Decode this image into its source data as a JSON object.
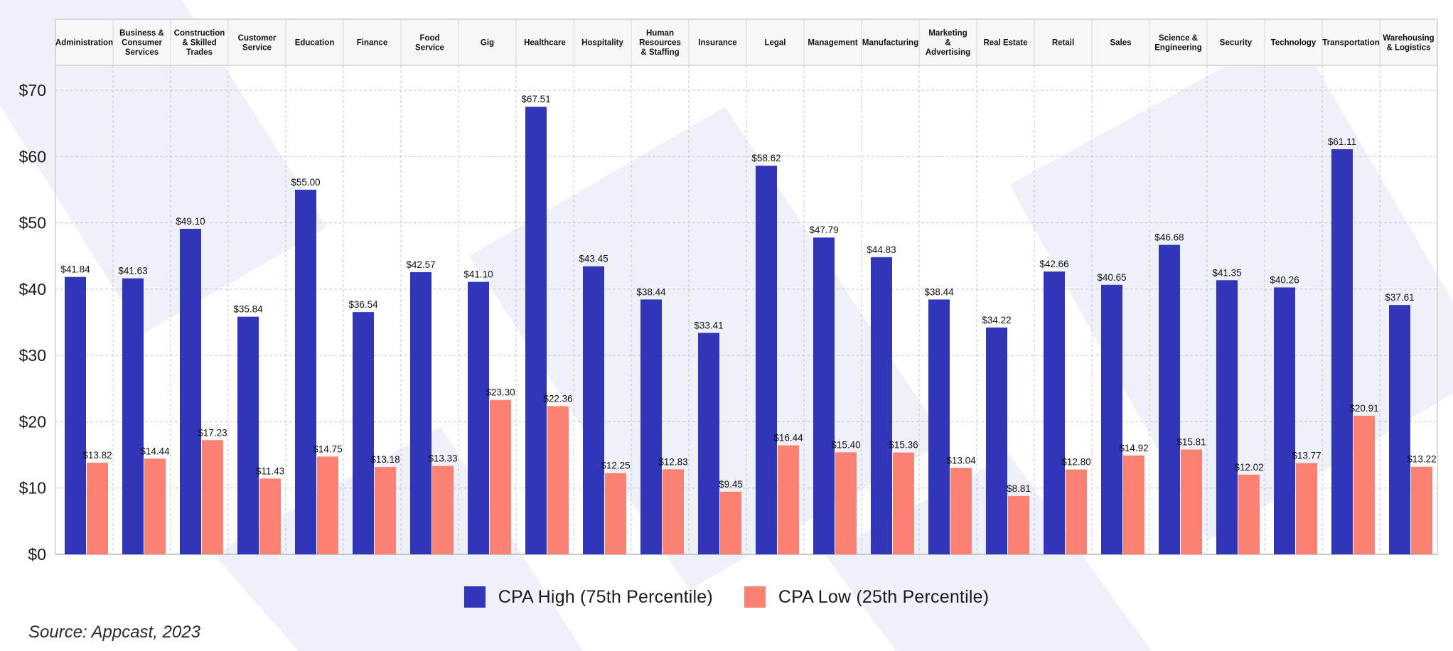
{
  "chart_data": {
    "type": "bar",
    "categories": [
      "Administration",
      "Business &\nConsumer\nServices",
      "Construction\n& Skilled\nTrades",
      "Customer\nService",
      "Education",
      "Finance",
      "Food\nService",
      "Gig",
      "Healthcare",
      "Hospitality",
      "Human\nResources\n& Staffing",
      "Insurance",
      "Legal",
      "Management",
      "Manufacturing",
      "Marketing\n&\nAdvertising",
      "Real Estate",
      "Retail",
      "Sales",
      "Science &\nEngineering",
      "Security",
      "Technology",
      "Transportation",
      "Warehousing\n& Logistics"
    ],
    "series": [
      {
        "name": "CPA High (75th Percentile)",
        "color": "#3136b8",
        "values": [
          41.84,
          41.63,
          49.1,
          35.84,
          55.0,
          36.54,
          42.57,
          41.1,
          67.51,
          43.45,
          38.44,
          33.41,
          58.62,
          47.79,
          44.83,
          38.44,
          34.22,
          42.66,
          40.65,
          46.68,
          41.35,
          40.26,
          61.11,
          37.61
        ],
        "labels": [
          "$41.84",
          "$41.63",
          "$49.10",
          "$35.84",
          "$55.00",
          "$36.54",
          "$42.57",
          "$41.10",
          "$67.51",
          "$43.45",
          "$38.44",
          "$33.41",
          "$58.62",
          "$47.79",
          "$44.83",
          "$38.44",
          "$34.22",
          "$42.66",
          "$40.65",
          "$46.68",
          "$41.35",
          "$40.26",
          "$61.11",
          "$37.61"
        ]
      },
      {
        "name": "CPA Low (25th Percentile)",
        "color": "#fb8172",
        "values": [
          13.82,
          14.44,
          17.23,
          11.43,
          14.75,
          13.18,
          13.33,
          23.3,
          22.36,
          12.25,
          12.83,
          9.45,
          16.44,
          15.4,
          15.36,
          13.04,
          8.81,
          12.8,
          14.92,
          15.81,
          12.02,
          13.77,
          20.91,
          13.22
        ],
        "labels": [
          "$13.82",
          "$14.44",
          "$17.23",
          "$11.43",
          "$14.75",
          "$13.18",
          "$13.33",
          "$23.30",
          "$22.36",
          "$12.25",
          "$12.83",
          "$9.45",
          "$16.44",
          "$15.40",
          "$15.36",
          "$13.04",
          "$8.81",
          "$12.80",
          "$14.92",
          "$15.81",
          "$12.02",
          "$13.77",
          "$20.91",
          "$13.22"
        ]
      }
    ],
    "ylim": [
      0,
      70
    ],
    "yticks": [
      0,
      10,
      20,
      30,
      40,
      50,
      60,
      70
    ],
    "ytick_labels": [
      "$0",
      "$10",
      "$20",
      "$30",
      "$40",
      "$50",
      "$60",
      "$70"
    ],
    "grid": true,
    "legend_position": "bottom-center",
    "category_header_position": "top"
  },
  "source": "Source: Appcast, 2023",
  "colors": {
    "background_shapes": "#eef1f9",
    "header_fill": "#f7f7f7",
    "grid": "#c7c7c7"
  }
}
